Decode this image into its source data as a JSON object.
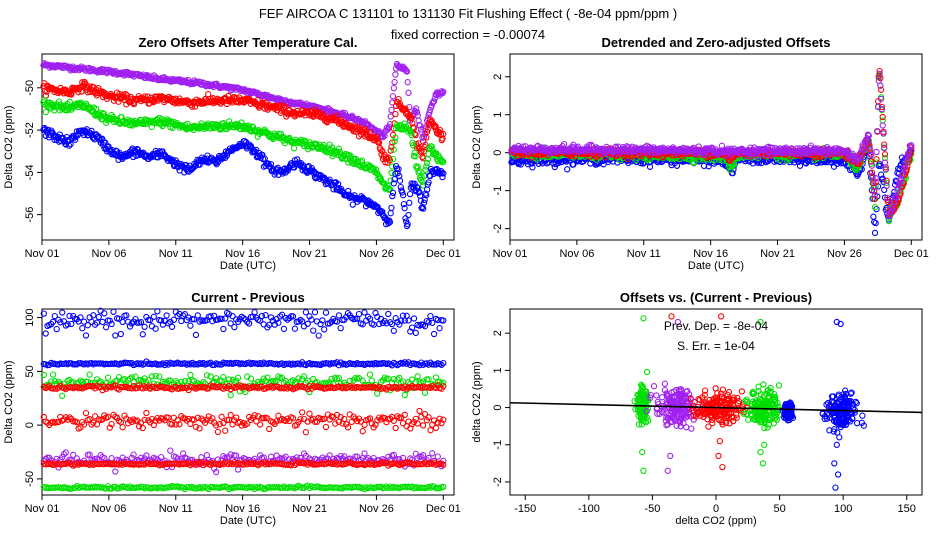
{
  "header": {
    "title": "FEF   AIRCOA C   131101 to 131130   Fit Flushing Effect ( -8e-04 ppm/ppm )",
    "subtitle": "fixed correction = -0.00074"
  },
  "colors": {
    "blue": "#0000ff",
    "red": "#ff0000",
    "green": "#00e000",
    "purple": "#a020f0",
    "black": "#000000"
  },
  "chart_data": [
    {
      "id": "p1",
      "type": "scatter",
      "title": "Zero Offsets After Temperature Cal.",
      "xlabel": "Date (UTC)",
      "ylabel": "Delta CO2 (ppm)",
      "xlim": [
        0,
        30.8
      ],
      "ylim": [
        -57.2,
        -48.4
      ],
      "xticks": [
        0,
        5,
        10,
        15,
        20,
        25,
        30
      ],
      "xticklabels": [
        "Nov 01",
        "Nov 06",
        "Nov 11",
        "Nov 16",
        "Nov 21",
        "Nov 26",
        "Dec 01"
      ],
      "yticks": [
        -56,
        -54,
        -52,
        -50
      ],
      "yticklabels": [
        "-56",
        "-54",
        "-52",
        "-50"
      ],
      "series": [
        {
          "name": "purple",
          "color": "#a020f0",
          "keyframes": [
            [
              0,
              -48.9
            ],
            [
              3,
              -49.1
            ],
            [
              6,
              -49.3
            ],
            [
              9,
              -49.6
            ],
            [
              12,
              -49.8
            ],
            [
              15,
              -50.1
            ],
            [
              18,
              -50.6
            ],
            [
              21,
              -51.0
            ],
            [
              24,
              -51.6
            ],
            [
              25.5,
              -52.3
            ],
            [
              26,
              -51.8
            ],
            [
              26.5,
              -48.9
            ],
            [
              27.3,
              -49.2
            ],
            [
              27.5,
              -51.5
            ],
            [
              28,
              -51.0
            ],
            [
              28.5,
              -52.5
            ],
            [
              29,
              -51.0
            ],
            [
              29.5,
              -50.3
            ],
            [
              30,
              -50.2
            ]
          ],
          "noise": 0.05
        },
        {
          "name": "red",
          "color": "#ff0000",
          "keyframes": [
            [
              0,
              -50.0
            ],
            [
              2,
              -50.2
            ],
            [
              3,
              -49.9
            ],
            [
              5,
              -50.4
            ],
            [
              7,
              -50.6
            ],
            [
              9,
              -50.5
            ],
            [
              11,
              -50.7
            ],
            [
              13,
              -50.6
            ],
            [
              15,
              -50.6
            ],
            [
              17,
              -50.9
            ],
            [
              19,
              -51.2
            ],
            [
              21,
              -51.3
            ],
            [
              23,
              -51.8
            ],
            [
              25,
              -52.4
            ],
            [
              25.5,
              -53.2
            ],
            [
              26,
              -53.5
            ],
            [
              26.5,
              -50.7
            ],
            [
              27.5,
              -51.2
            ],
            [
              28,
              -52.6
            ],
            [
              28.5,
              -53.2
            ],
            [
              29,
              -51.5
            ],
            [
              29.5,
              -52.0
            ],
            [
              30,
              -52.3
            ]
          ],
          "noise": 0.1
        },
        {
          "name": "green",
          "color": "#00e000",
          "keyframes": [
            [
              0,
              -50.7
            ],
            [
              2,
              -51.0
            ],
            [
              3,
              -50.8
            ],
            [
              5,
              -51.5
            ],
            [
              7,
              -51.7
            ],
            [
              9,
              -51.6
            ],
            [
              11,
              -51.9
            ],
            [
              13,
              -51.8
            ],
            [
              15,
              -51.8
            ],
            [
              17,
              -52.2
            ],
            [
              19,
              -52.6
            ],
            [
              21,
              -52.8
            ],
            [
              23,
              -53.3
            ],
            [
              25,
              -54.0
            ],
            [
              25.5,
              -54.6
            ],
            [
              26,
              -54.8
            ],
            [
              26.5,
              -51.8
            ],
            [
              27.5,
              -52.0
            ],
            [
              28,
              -53.7
            ],
            [
              28.5,
              -54.6
            ],
            [
              29,
              -52.8
            ],
            [
              29.5,
              -53.3
            ],
            [
              30,
              -53.5
            ]
          ],
          "noise": 0.1
        },
        {
          "name": "blue",
          "color": "#0000ff",
          "keyframes": [
            [
              0,
              -52.0
            ],
            [
              1,
              -52.3
            ],
            [
              2,
              -52.6
            ],
            [
              3,
              -52.0
            ],
            [
              4,
              -52.3
            ],
            [
              5,
              -52.9
            ],
            [
              6,
              -53.3
            ],
            [
              7,
              -53.0
            ],
            [
              8,
              -53.3
            ],
            [
              9,
              -53.1
            ],
            [
              10,
              -53.6
            ],
            [
              11,
              -53.9
            ],
            [
              12,
              -53.4
            ],
            [
              13,
              -53.5
            ],
            [
              14,
              -53.0
            ],
            [
              15,
              -52.6
            ],
            [
              16,
              -53.0
            ],
            [
              17,
              -53.8
            ],
            [
              18,
              -54.0
            ],
            [
              19,
              -53.5
            ],
            [
              20,
              -53.9
            ],
            [
              21,
              -54.3
            ],
            [
              22,
              -54.7
            ],
            [
              23,
              -55.2
            ],
            [
              24,
              -55.3
            ],
            [
              25,
              -55.6
            ],
            [
              25.5,
              -56.0
            ],
            [
              26,
              -56.3
            ],
            [
              26.5,
              -53.6
            ],
            [
              27,
              -55.2
            ],
            [
              27.3,
              -56.8
            ],
            [
              27.6,
              -54.5
            ],
            [
              28.2,
              -55.0
            ],
            [
              28.5,
              -55.7
            ],
            [
              29,
              -54.0
            ],
            [
              29.5,
              -54.0
            ],
            [
              30,
              -54.0
            ]
          ],
          "noise": 0.1
        }
      ]
    },
    {
      "id": "p2",
      "type": "scatter",
      "title": "Detrended and Zero-adjusted Offsets",
      "xlabel": "Date (UTC)",
      "ylabel": "Delta CO2 (ppm)",
      "xlim": [
        0,
        30.8
      ],
      "ylim": [
        -2.3,
        2.6
      ],
      "xticks": [
        0,
        5,
        10,
        15,
        20,
        25,
        30
      ],
      "xticklabels": [
        "Nov 01",
        "Nov 06",
        "Nov 11",
        "Nov 16",
        "Nov 21",
        "Nov 26",
        "Dec 01"
      ],
      "yticks": [
        -2,
        -1,
        0,
        1,
        2
      ],
      "yticklabels": [
        "-2",
        "-1",
        "0",
        "1",
        "2"
      ],
      "series": [
        {
          "name": "blue",
          "color": "#0000ff",
          "keyframes": [
            [
              0,
              -0.2
            ],
            [
              8,
              -0.15
            ],
            [
              16,
              -0.2
            ],
            [
              16.5,
              -0.5
            ],
            [
              17,
              -0.15
            ],
            [
              25,
              -0.2
            ],
            [
              26,
              -0.6
            ],
            [
              26.8,
              0.3
            ],
            [
              27.3,
              -2.15
            ],
            [
              27.6,
              -0.2
            ],
            [
              28.3,
              -1.8
            ],
            [
              29,
              -0.5
            ],
            [
              30,
              0.05
            ]
          ],
          "noise": 0.07
        },
        {
          "name": "green",
          "color": "#00e000",
          "keyframes": [
            [
              0,
              -0.05
            ],
            [
              8,
              -0.05
            ],
            [
              16,
              -0.1
            ],
            [
              16.5,
              -0.4
            ],
            [
              17,
              -0.05
            ],
            [
              25,
              -0.05
            ],
            [
              26,
              -0.4
            ],
            [
              26.8,
              0.3
            ],
            [
              27.3,
              -1.5
            ],
            [
              27.6,
              2.3
            ],
            [
              28.3,
              -1.7
            ],
            [
              29,
              -1.3
            ],
            [
              30,
              0.0
            ]
          ],
          "noise": 0.06
        },
        {
          "name": "red",
          "color": "#ff0000",
          "keyframes": [
            [
              0,
              0.0
            ],
            [
              8,
              0.0
            ],
            [
              16,
              0.0
            ],
            [
              16.5,
              -0.2
            ],
            [
              17,
              0.0
            ],
            [
              25,
              0.0
            ],
            [
              26,
              -0.3
            ],
            [
              26.8,
              0.4
            ],
            [
              27.3,
              -1.3
            ],
            [
              27.6,
              2.4
            ],
            [
              28.3,
              -1.6
            ],
            [
              29,
              -1.3
            ],
            [
              30,
              0.05
            ]
          ],
          "noise": 0.05
        },
        {
          "name": "purple",
          "color": "#a020f0",
          "keyframes": [
            [
              0,
              0.1
            ],
            [
              8,
              0.08
            ],
            [
              16,
              0.05
            ],
            [
              16.5,
              0.0
            ],
            [
              17,
              0.05
            ],
            [
              25,
              0.05
            ],
            [
              26,
              -0.2
            ],
            [
              26.8,
              0.5
            ],
            [
              27.3,
              -1.2
            ],
            [
              27.6,
              2.25
            ],
            [
              28.3,
              -1.7
            ],
            [
              29,
              -1.0
            ],
            [
              30,
              0.25
            ]
          ],
          "noise": 0.05
        }
      ]
    },
    {
      "id": "p3",
      "type": "scatter",
      "title": "Current - Previous",
      "xlabel": "Date (UTC)",
      "ylabel": "Delta CO2 (ppm)",
      "xlim": [
        0,
        30.8
      ],
      "ylim": [
        -65,
        108
      ],
      "xticks": [
        0,
        5,
        10,
        15,
        20,
        25,
        30
      ],
      "xticklabels": [
        "Nov 01",
        "Nov 06",
        "Nov 11",
        "Nov 16",
        "Nov 21",
        "Nov 26",
        "Dec 01"
      ],
      "yticks": [
        -50,
        0,
        50,
        100
      ],
      "yticklabels": [
        "-50",
        "0",
        "50",
        "100"
      ],
      "series": [
        {
          "name": "blue-hi",
          "color": "#0000ff",
          "level": 98,
          "noise": 4,
          "outliers": -15
        },
        {
          "name": "blue-lo",
          "color": "#0000ff",
          "level": 57,
          "noise": 0.6,
          "outliers": 0
        },
        {
          "name": "green-hi",
          "color": "#00e000",
          "level": 40,
          "noise": 3,
          "outliers": -14
        },
        {
          "name": "red-hi",
          "color": "#ff0000",
          "level": 35,
          "noise": 0.8,
          "outliers": 0
        },
        {
          "name": "red-lo",
          "color": "#ff0000",
          "level": 5,
          "noise": 3,
          "outliers": -12
        },
        {
          "name": "purple",
          "color": "#a020f0",
          "level": -32,
          "noise": 2.5,
          "outliers": -12
        },
        {
          "name": "red-mid",
          "color": "#ff0000",
          "level": -36,
          "noise": 0.6,
          "outliers": 0
        },
        {
          "name": "green-lo",
          "color": "#00e000",
          "level": -58,
          "noise": 0.6,
          "outliers": 0
        }
      ]
    },
    {
      "id": "p4",
      "type": "scatter",
      "title": "Offsets vs. (Current - Previous)",
      "xlabel": "delta CO2 (ppm)",
      "ylabel": "delta CO2 (ppm)",
      "xlim": [
        -162,
        162
      ],
      "ylim": [
        -2.35,
        2.65
      ],
      "xticks": [
        -150,
        -100,
        -50,
        0,
        50,
        100,
        150
      ],
      "xticklabels": [
        "-150",
        "-100",
        "-50",
        "0",
        "50",
        "100",
        "150"
      ],
      "yticks": [
        -2,
        -1,
        0,
        1,
        2
      ],
      "yticklabels": [
        "-2",
        "-1",
        "0",
        "1",
        "2"
      ],
      "fit_line": {
        "slope": -0.0008,
        "intercept": 0.0,
        "color": "#000000"
      },
      "annotations": [
        "Prev. Dep. = -8e-04",
        "S. Err. = 1e-04"
      ],
      "series": [
        {
          "name": "green-left",
          "color": "#00e000",
          "x": -58,
          "xspread": 2,
          "ycenter": 0.1,
          "yspread": 0.2
        },
        {
          "name": "purple-left",
          "color": "#a020f0",
          "x": -32,
          "xspread": 8,
          "ycenter": 0.0,
          "yspread": 0.25
        },
        {
          "name": "red-center",
          "color": "#ff0000",
          "x": 2,
          "xspread": 9,
          "ycenter": 0.0,
          "yspread": 0.2
        },
        {
          "name": "green-right",
          "color": "#00e000",
          "x": 38,
          "xspread": 6,
          "ycenter": 0.0,
          "yspread": 0.25
        },
        {
          "name": "blue-57",
          "color": "#0000ff",
          "x": 57,
          "xspread": 1.5,
          "ycenter": -0.1,
          "yspread": 0.1
        },
        {
          "name": "blue-right",
          "color": "#0000ff",
          "x": 98,
          "xspread": 6,
          "ycenter": -0.15,
          "yspread": 0.25
        }
      ],
      "extra_points": [
        [
          -57,
          2.4,
          "#00e000"
        ],
        [
          -57,
          -1.7,
          "#00e000"
        ],
        [
          -58,
          -1.2,
          "#00e000"
        ],
        [
          -35,
          2.45,
          "#ff0000"
        ],
        [
          -30,
          2.3,
          "#a020f0"
        ],
        [
          -38,
          -1.7,
          "#a020f0"
        ],
        [
          -36,
          -1.3,
          "#a020f0"
        ],
        [
          4,
          2.45,
          "#ff0000"
        ],
        [
          2,
          -1.3,
          "#ff0000"
        ],
        [
          5,
          -1.6,
          "#ff0000"
        ],
        [
          3,
          -0.9,
          "#ff0000"
        ],
        [
          35,
          2.3,
          "#00e000"
        ],
        [
          37,
          -1.5,
          "#00e000"
        ],
        [
          35,
          -1.2,
          "#00e000"
        ],
        [
          38,
          -1.0,
          "#00e000"
        ],
        [
          95,
          2.3,
          "#0000ff"
        ],
        [
          98,
          2.25,
          "#0000ff"
        ],
        [
          94,
          -2.15,
          "#0000ff"
        ],
        [
          96,
          -1.8,
          "#0000ff"
        ],
        [
          93,
          -1.5,
          "#0000ff"
        ],
        [
          95,
          -1.0,
          "#0000ff"
        ],
        [
          97,
          -0.8,
          "#0000ff"
        ],
        [
          92,
          0.3,
          "#0000ff"
        ]
      ]
    }
  ]
}
